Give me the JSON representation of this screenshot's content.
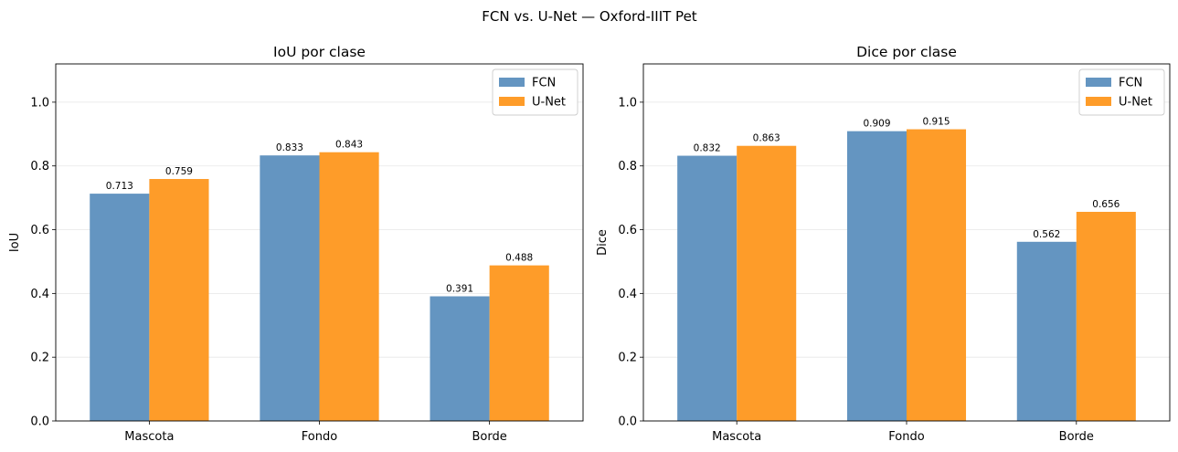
{
  "figure": {
    "suptitle": "FCN vs. U-Net — Oxford-IIIT Pet"
  },
  "colors": {
    "fcn": "#6495c1",
    "unet": "#fe9c29"
  },
  "chart_data": [
    {
      "type": "bar",
      "title": "IoU por clase",
      "xlabel": "",
      "ylabel": "IoU",
      "categories": [
        "Mascota",
        "Fondo",
        "Borde"
      ],
      "series": [
        {
          "name": "FCN",
          "values": [
            0.713,
            0.833,
            0.391
          ],
          "labels": [
            "0.713",
            "0.833",
            "0.391"
          ]
        },
        {
          "name": "U-Net",
          "values": [
            0.759,
            0.843,
            0.488
          ],
          "labels": [
            "0.759",
            "0.843",
            "0.488"
          ]
        }
      ],
      "ylim": [
        0,
        1.12
      ],
      "yticks": [
        "0.0",
        "0.2",
        "0.4",
        "0.6",
        "0.8",
        "1.0"
      ],
      "grid": "y",
      "legend": "upper right"
    },
    {
      "type": "bar",
      "title": "Dice por clase",
      "xlabel": "",
      "ylabel": "Dice",
      "categories": [
        "Mascota",
        "Fondo",
        "Borde"
      ],
      "series": [
        {
          "name": "FCN",
          "values": [
            0.832,
            0.909,
            0.562
          ],
          "labels": [
            "0.832",
            "0.909",
            "0.562"
          ]
        },
        {
          "name": "U-Net",
          "values": [
            0.863,
            0.915,
            0.656
          ],
          "labels": [
            "0.863",
            "0.915",
            "0.656"
          ]
        }
      ],
      "ylim": [
        0,
        1.12
      ],
      "yticks": [
        "0.0",
        "0.2",
        "0.4",
        "0.6",
        "0.8",
        "1.0"
      ],
      "grid": "y",
      "legend": "upper right"
    }
  ]
}
